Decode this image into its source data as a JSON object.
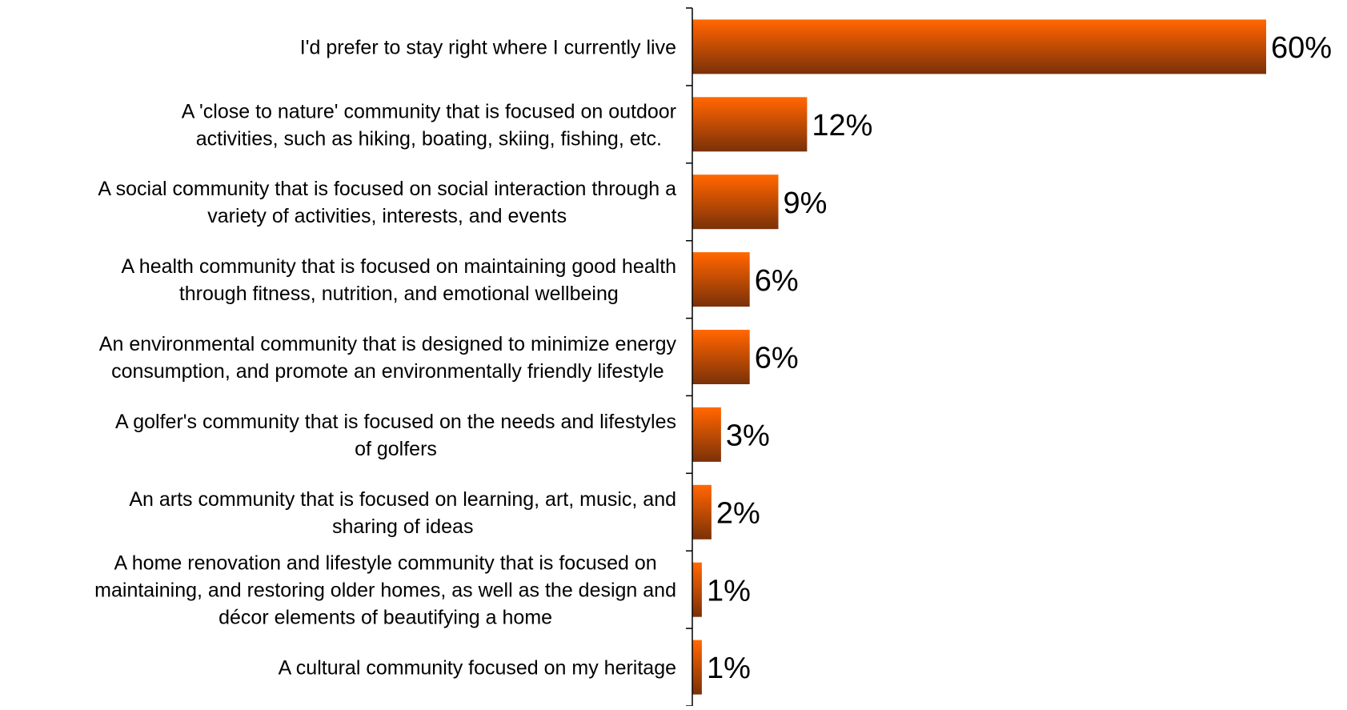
{
  "chart_data": {
    "type": "bar",
    "orientation": "horizontal",
    "categories": [
      [
        "I'd prefer to stay right where I currently live"
      ],
      [
        "A 'close to nature' community that is focused on outdoor",
        "activities, such as hiking, boating, skiing, fishing, etc."
      ],
      [
        "A social community that is focused on social interaction through a",
        "variety of activities, interests, and events"
      ],
      [
        "A health community that is focused on maintaining good health",
        "through fitness, nutrition, and emotional wellbeing"
      ],
      [
        "An environmental community that is designed to minimize energy",
        "consumption, and promote an environmentally friendly lifestyle"
      ],
      [
        "A golfer's community that is focused on the needs and lifestyles",
        "of golfers"
      ],
      [
        "An arts community that is focused on learning, art, music, and",
        "sharing of ideas"
      ],
      [
        "A home renovation and lifestyle community that is focused on",
        "maintaining, and restoring older homes, as well as the design and",
        "décor elements of beautifying a home"
      ],
      [
        "A cultural community focused on my heritage"
      ]
    ],
    "values": [
      60,
      12,
      9,
      6,
      6,
      3,
      2,
      1,
      1
    ],
    "data_labels": [
      "60%",
      "12%",
      "9%",
      "6%",
      "6%",
      "3%",
      "2%",
      "1%",
      "1%"
    ],
    "xlim": [
      0,
      60
    ],
    "legend": "none",
    "grid": false,
    "colors": {
      "bar_top": "#ff6a00",
      "bar_bottom": "#7a3108",
      "axis": "#000000",
      "text": "#000000"
    }
  }
}
